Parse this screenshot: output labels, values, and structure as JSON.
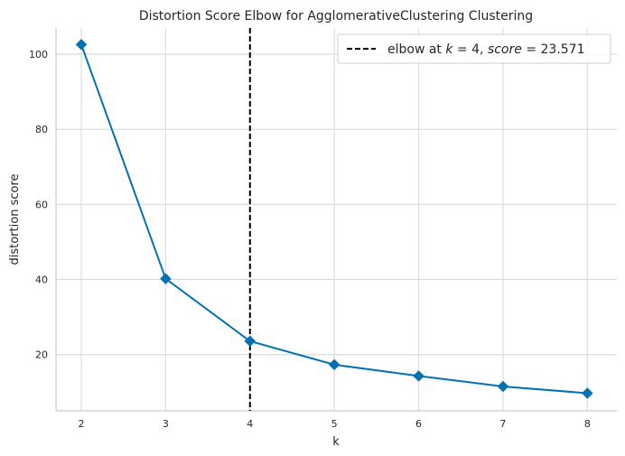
{
  "chart_data": {
    "type": "line",
    "title": "Distortion Score Elbow for AgglomerativeClustering Clustering",
    "xlabel": "k",
    "ylabel": "distortion score",
    "x": [
      2,
      3,
      4,
      5,
      6,
      7,
      8
    ],
    "series": [
      {
        "values": [
          102.6,
          40.2,
          23.571,
          17.3,
          14.3,
          11.5,
          9.7
        ],
        "color": "#0072b2",
        "marker": "diamond"
      }
    ],
    "xlim": [
      1.7,
      8.35
    ],
    "ylim": [
      5,
      107
    ],
    "xticks": [
      2,
      3,
      4,
      5,
      6,
      7,
      8
    ],
    "yticks": [
      20,
      40,
      60,
      80,
      100
    ],
    "grid": true,
    "elbow": {
      "k": 4,
      "score": 23.571,
      "color": "#000000",
      "style": "dashed"
    },
    "legend": {
      "placement": "top-right",
      "parts": [
        "elbow at ",
        "k",
        " = 4, ",
        "score",
        " = 23.571"
      ]
    }
  }
}
